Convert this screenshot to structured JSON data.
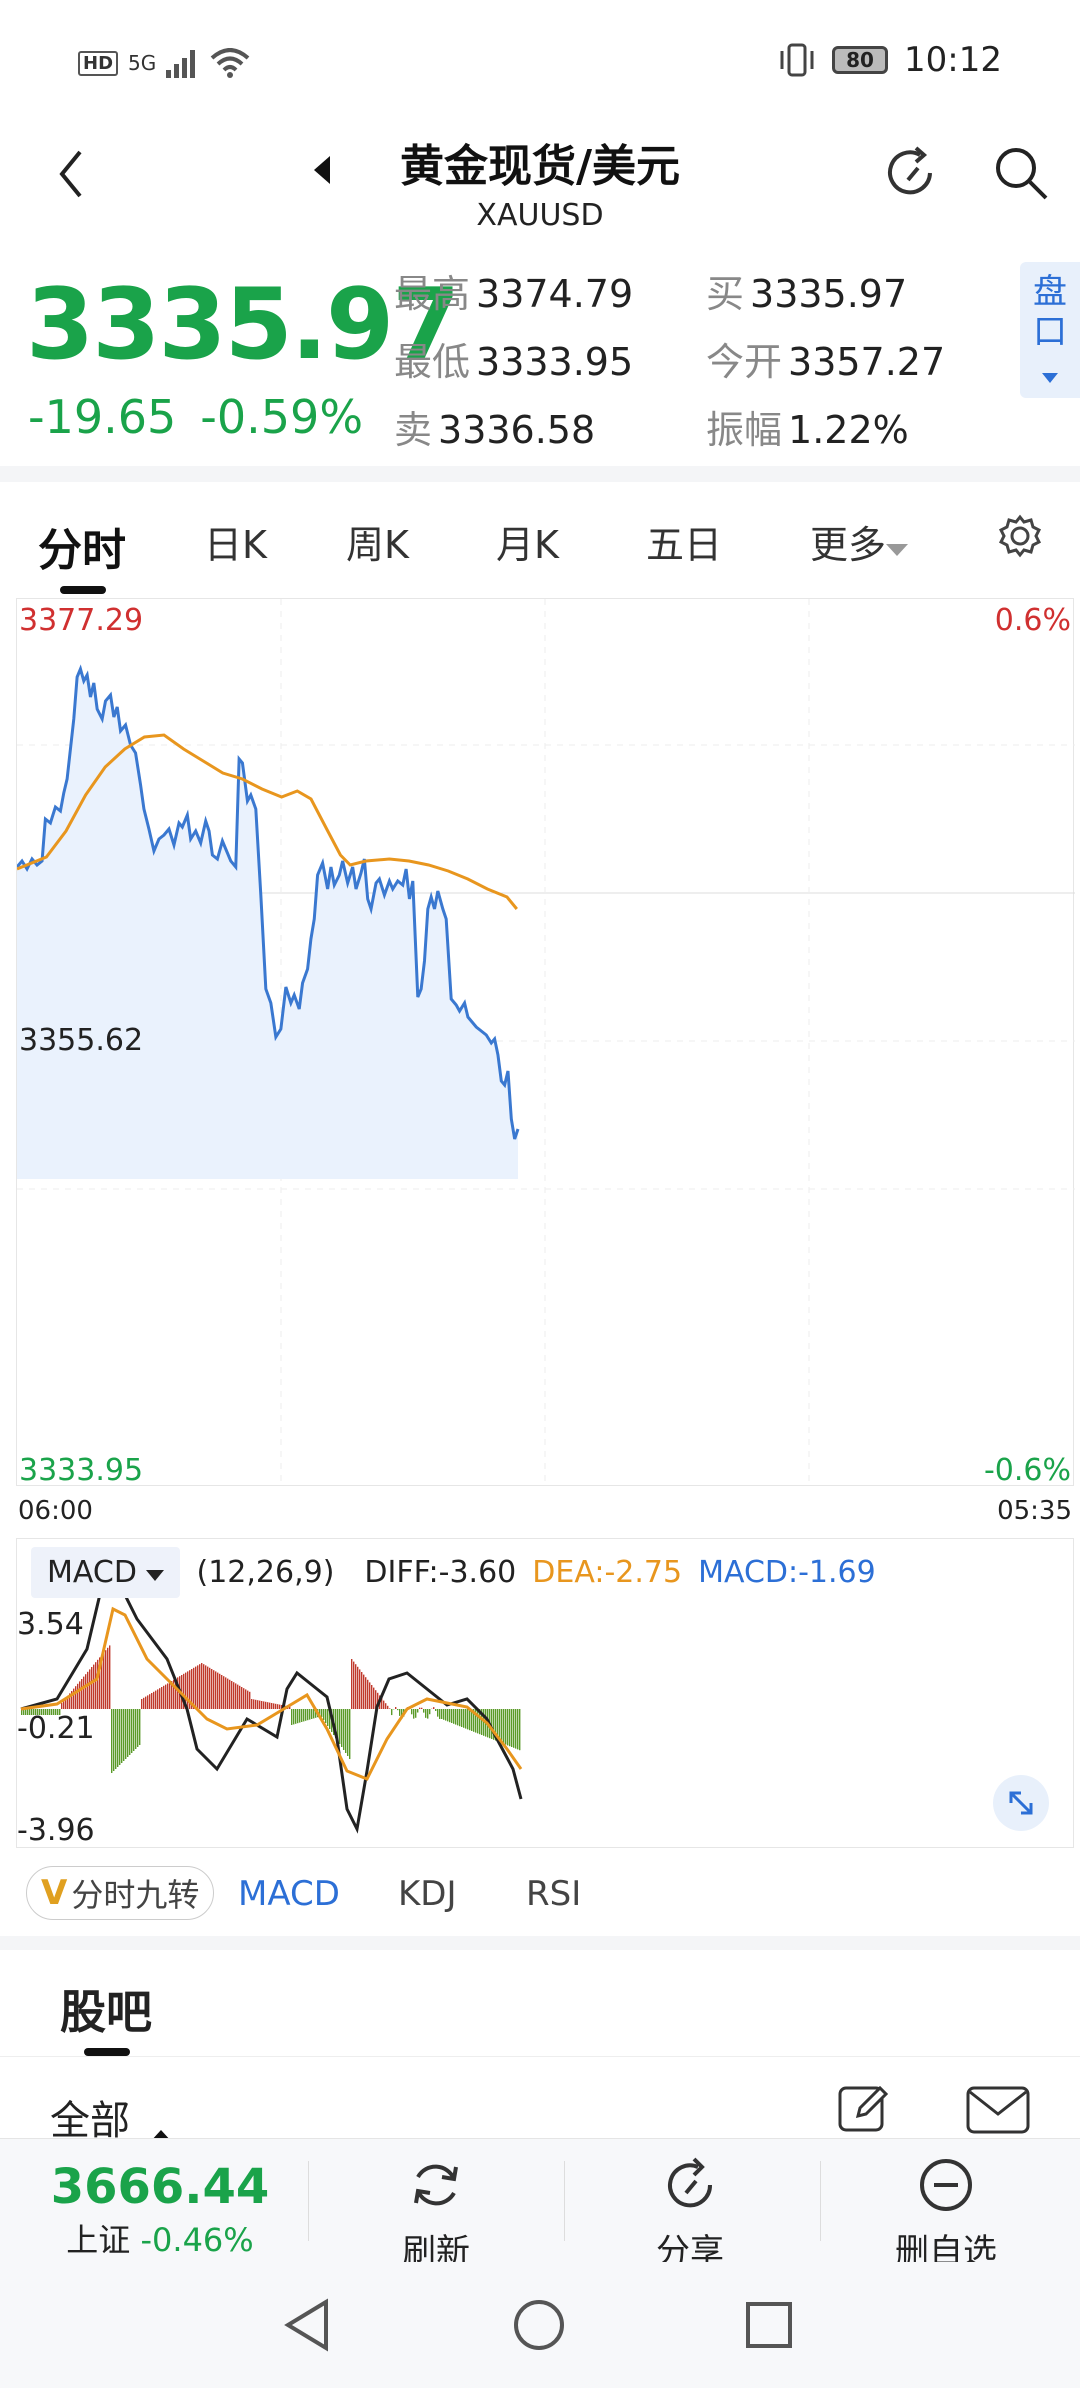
{
  "status": {
    "network": "HD",
    "signal": "5G",
    "battery": "80",
    "time": "10:12"
  },
  "header": {
    "title": "黄金现货/美元",
    "symbol": "XAUUSD"
  },
  "quote": {
    "price": "3335.97",
    "change": "-19.65",
    "change_pct": "-0.59%",
    "high_label": "最高",
    "high": "3374.79",
    "low_label": "最低",
    "low": "3333.95",
    "sell_label": "卖",
    "sell": "3336.58",
    "buy_label": "买",
    "buy": "3335.97",
    "open_label": "今开",
    "open": "3357.27",
    "amp_label": "振幅",
    "amp": "1.22%",
    "pankou": "盘口",
    "colors": {
      "down": "#1aa34a",
      "up": "#d03030"
    }
  },
  "tabs": [
    "分时",
    "日K",
    "周K",
    "月K",
    "五日",
    "更多"
  ],
  "chart": {
    "top_price": "3377.29",
    "mid_price": "3355.62",
    "bottom_price": "3333.95",
    "top_pct": "0.6%",
    "bottom_pct": "-0.6%",
    "time_start": "06:00",
    "time_end": "05:35"
  },
  "macd": {
    "btn": "MACD",
    "params": "(12,26,9)",
    "diff": "DIFF:-3.60",
    "dea": "DEA:-2.75",
    "macd": "MACD:-1.69",
    "y_top": "3.54",
    "y_mid": "-0.21",
    "y_bottom": "-3.96"
  },
  "indicators": {
    "jiuzhuan": "分时九转",
    "items": [
      "MACD",
      "KDJ",
      "RSI"
    ]
  },
  "guba": {
    "title": "股吧",
    "all": "全部"
  },
  "bottom": {
    "index_value": "3666.44",
    "index_name": "上证",
    "index_pct": "-0.46%",
    "refresh": "刷新",
    "share": "分享",
    "remove": "删自选"
  }
}
